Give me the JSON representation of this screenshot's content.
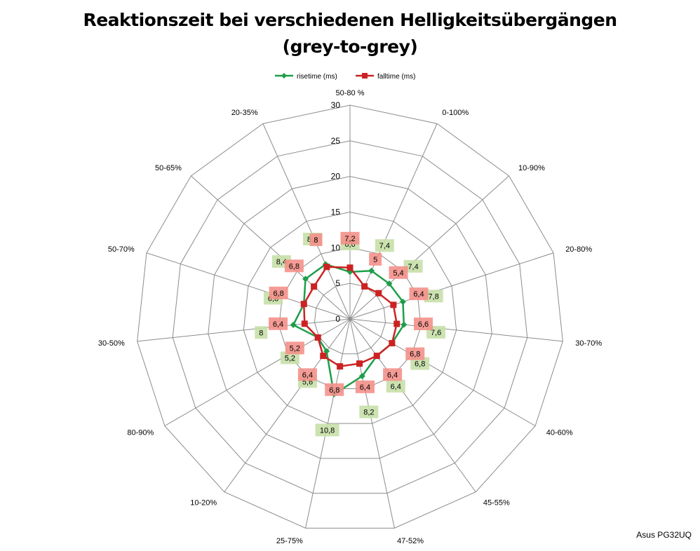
{
  "chart_data": {
    "type": "radar",
    "title_line1": "Reaktionszeit bei verschiedenen Helligkeitsübergängen",
    "title_line2": "(grey-to-grey)",
    "categories": [
      "50-80 %",
      "0-100%",
      "10-90%",
      "20-80%",
      "30-70%",
      "40-60%",
      "45-55%",
      "47-52%",
      "25-75%",
      "10-20%",
      "80-90%",
      "30-50%",
      "50-70%",
      "50-65%",
      "20-35%"
    ],
    "r_range": [
      0,
      30
    ],
    "r_ticks": [
      0,
      5,
      10,
      15,
      20,
      25,
      30
    ],
    "grid": true,
    "legend_position": "top",
    "series": [
      {
        "name": "risetime (ms)",
        "color": "#1e9e4a",
        "marker": "diamond",
        "label_bg": "#c6e0a8",
        "values": [
          6.6,
          7.4,
          7.4,
          7.8,
          7.6,
          6.8,
          6.4,
          8.2,
          10.8,
          5.6,
          5.2,
          8.0,
          6.8,
          8.4,
          8.4
        ],
        "labels": [
          "6,6",
          "7,4",
          "7,4",
          "7,8",
          "7,6",
          "6,8",
          "6,4",
          "8,2",
          "10,8",
          "5,6",
          "5,2",
          "8",
          "6,8",
          "8,4",
          "8,4"
        ]
      },
      {
        "name": "falltime (ms)",
        "color": "#cc2222",
        "marker": "square",
        "label_bg": "#f4908a",
        "values": [
          7.2,
          5.0,
          5.4,
          6.4,
          6.6,
          6.8,
          6.4,
          6.4,
          6.8,
          6.4,
          5.2,
          6.4,
          6.8,
          6.8,
          8.0
        ],
        "labels": [
          "7,2",
          "5",
          "5,4",
          "6,4",
          "6,6",
          "6,8",
          "6,4",
          "6,4",
          "6,8",
          "6,4",
          "5,2",
          "6,4",
          "6,8",
          "6,8",
          "8"
        ]
      }
    ]
  },
  "footer": {
    "watermark": "Asus PG32UQ"
  }
}
